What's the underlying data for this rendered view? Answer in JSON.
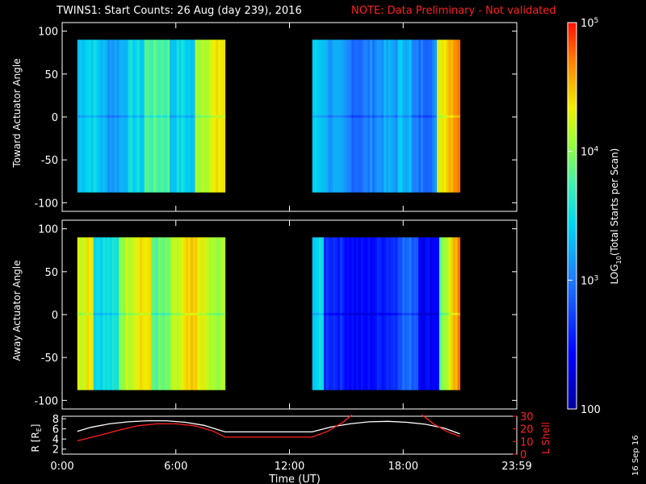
{
  "header": {
    "title": "TWINS1: Start Counts: 26 Aug (day 239), 2016",
    "note": "NOTE: Data Preliminary - Not validated"
  },
  "footer": {
    "xlabel": "Time (UT)",
    "stamp": "16 Sep 16"
  },
  "colors": {
    "background": "#000000",
    "axes": "#ffffff",
    "note": "#ff2020",
    "r_line": "#ffffff",
    "l_shell_line": "#ff2020"
  },
  "chart_data": [
    {
      "type": "heatmap",
      "panel": "top",
      "ylabel": "Toward Actuator Angle",
      "xlim_hours": [
        0,
        24
      ],
      "x_ticks": [
        "0:00",
        "6:00",
        "12:00",
        "18:00",
        "23:59"
      ],
      "ylim": [
        -110,
        110
      ],
      "y_ticks": [
        "100",
        "50",
        "0",
        "-50",
        "-100"
      ],
      "data_intervals_hours": [
        [
          0.8,
          8.6
        ],
        [
          13.2,
          21.0
        ]
      ],
      "angle_range": [
        -88,
        90
      ],
      "colorscale": "log10 counts per scan, 100 to 1e5"
    },
    {
      "type": "heatmap",
      "panel": "bottom",
      "ylabel": "Away Actuator Angle",
      "xlim_hours": [
        0,
        24
      ],
      "x_ticks": [
        "0:00",
        "6:00",
        "12:00",
        "18:00",
        "23:59"
      ],
      "ylim": [
        -110,
        110
      ],
      "y_ticks": [
        "100",
        "50",
        "0",
        "-50",
        "-100"
      ],
      "data_intervals_hours": [
        [
          0.8,
          8.6
        ],
        [
          13.2,
          21.0
        ]
      ],
      "angle_range": [
        -88,
        90
      ],
      "colorscale": "log10 counts per scan, 100 to 1e5"
    },
    {
      "type": "colorbar",
      "label_main": "LOG",
      "label_sub": "10",
      "label_rest": "(Total Starts per Scan)",
      "range": [
        100,
        100000
      ],
      "ticks": [
        {
          "value": 100,
          "base": "100",
          "exp": ""
        },
        {
          "value": 1000,
          "base": "10",
          "exp": "3"
        },
        {
          "value": 10000,
          "base": "10",
          "exp": "4"
        },
        {
          "value": 100000,
          "base": "10",
          "exp": "5"
        }
      ]
    },
    {
      "type": "line",
      "panel": "orbit",
      "ylabel_left_main": "R [R",
      "ylabel_left_sub": "E",
      "ylabel_left_end": "]",
      "ylabel_right": "L Shell",
      "y_left_ticks": [
        "8",
        "6",
        "4",
        "2"
      ],
      "y_left_range": [
        1,
        8.5
      ],
      "y_right_ticks": [
        "30",
        "20",
        "10",
        "0"
      ],
      "y_right_range": [
        0,
        30
      ],
      "series": [
        {
          "name": "R",
          "axis": "left",
          "x": [
            0.8,
            1.5,
            2.5,
            3.5,
            4.5,
            5.5,
            6.5,
            7.5,
            8.6,
            13.2,
            14.2,
            15.2,
            16.2,
            17.2,
            18.2,
            19.2,
            20.2,
            21.0
          ],
          "y": [
            5.5,
            6.3,
            7.0,
            7.4,
            7.6,
            7.6,
            7.3,
            6.7,
            5.4,
            5.4,
            6.4,
            7.0,
            7.4,
            7.5,
            7.3,
            6.9,
            6.1,
            5.0
          ]
        },
        {
          "name": "L Shell",
          "axis": "right",
          "x": [
            0.8,
            2.0,
            3.0,
            4.0,
            5.0,
            6.0,
            7.0,
            8.0,
            8.6,
            13.2,
            14.0,
            14.8,
            15.3
          ],
          "y": [
            10.5,
            15,
            19,
            22.5,
            24,
            24,
            22.5,
            18,
            13.5,
            13.5,
            18,
            25,
            31
          ],
          "x2": [
            19.0,
            19.6,
            20.3,
            21.0
          ],
          "y2": [
            31,
            24,
            18,
            14
          ]
        }
      ]
    }
  ]
}
